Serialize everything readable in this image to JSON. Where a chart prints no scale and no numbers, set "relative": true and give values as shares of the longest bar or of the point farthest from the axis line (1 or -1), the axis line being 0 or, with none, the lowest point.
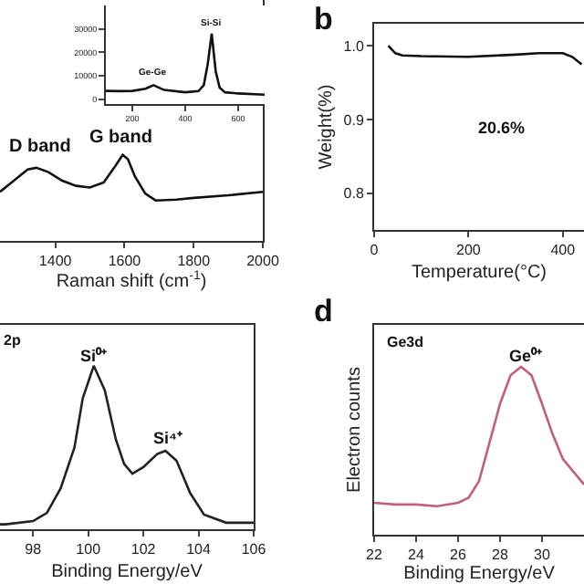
{
  "chart_data": [
    {
      "type": "line",
      "xlabel": "Raman shift (cm$^{-1}$)",
      "relative": true,
      "tick_labels": "x",
      "grid": false,
      "xlim": [
        1240,
        2000
      ],
      "xticks": [
        1400,
        1600,
        1800,
        2000
      ],
      "x": [
        1240,
        1280,
        1320,
        1345,
        1380,
        1420,
        1460,
        1500,
        1540,
        1570,
        1595,
        1610,
        1630,
        1660,
        1690,
        1750,
        1800,
        1900,
        2000
      ],
      "series": [
        {
          "color": "#111111",
          "values": [
            0.57,
            0.7,
            0.83,
            0.85,
            0.8,
            0.7,
            0.64,
            0.62,
            0.68,
            0.85,
            1.0,
            0.95,
            0.75,
            0.55,
            0.47,
            0.48,
            0.5,
            0.53,
            0.57
          ]
        }
      ],
      "annotations": [
        "D band",
        "G band"
      ]
    },
    {
      "type": "line",
      "grid": false,
      "xlim": [
        100,
        700
      ],
      "xticks": [
        200,
        400,
        600
      ],
      "ylim": [
        -2000,
        40000
      ],
      "yticks": [
        0,
        10000,
        20000,
        30000
      ],
      "x": [
        100,
        150,
        200,
        250,
        280,
        320,
        400,
        450,
        470,
        485,
        500,
        515,
        530,
        550,
        600,
        700
      ],
      "series": [
        {
          "color": "#111111",
          "values": [
            3600,
            3500,
            3600,
            4500,
            6000,
            4000,
            3000,
            3500,
            6000,
            15000,
            28000,
            12000,
            5000,
            3000,
            2500,
            2000
          ]
        }
      ],
      "annotations": [
        "Ge-Ge",
        "Si-Si"
      ]
    },
    {
      "type": "line",
      "title": "b",
      "xlabel": "Temperature(°C)",
      "ylabel": "Weight(%)",
      "grid": false,
      "xlim": [
        0,
        445
      ],
      "xticks": [
        0,
        200,
        400
      ],
      "ylim": [
        0.75,
        1.03
      ],
      "yticks": [
        {
          "value": 0.8,
          "label": "0.8"
        },
        {
          "value": 0.9,
          "label": "0.9"
        },
        {
          "value": 1.0,
          "label": "1.0"
        }
      ],
      "x": [
        30,
        45,
        60,
        100,
        200,
        300,
        350,
        400,
        420,
        440
      ],
      "series": [
        {
          "color": "#111111",
          "values": [
            1.0,
            0.99,
            0.987,
            0.986,
            0.985,
            0.988,
            0.99,
            0.99,
            0.985,
            0.975
          ]
        }
      ],
      "annotations": [
        "20.6%"
      ]
    },
    {
      "type": "line",
      "xlabel": "Binding Energy/eV",
      "relative": true,
      "tick_labels": "x",
      "grid": false,
      "xlim": [
        96.8,
        106
      ],
      "xticks": [
        98,
        100,
        102,
        104,
        106
      ],
      "x": [
        96.8,
        97,
        98,
        98.5,
        99,
        99.5,
        99.8,
        100.2,
        100.6,
        101,
        101.3,
        101.6,
        102,
        102.5,
        102.8,
        103.2,
        103.7,
        104.2,
        105,
        106
      ],
      "series": [
        {
          "color": "#222222",
          "values": [
            0.03,
            0.03,
            0.05,
            0.1,
            0.25,
            0.5,
            0.8,
            1.0,
            0.85,
            0.55,
            0.4,
            0.34,
            0.38,
            0.46,
            0.48,
            0.42,
            0.22,
            0.09,
            0.04,
            0.04
          ]
        }
      ],
      "annotations": [
        "2p",
        "Si⁰⁺",
        "Si⁴⁺"
      ]
    },
    {
      "type": "line",
      "title": "d",
      "xlabel": "Binding Energy/eV",
      "ylabel": "Electron counts",
      "relative": true,
      "tick_labels": "x",
      "grid": false,
      "xlim": [
        22,
        32
      ],
      "xticks": [
        22,
        24,
        26,
        28,
        30
      ],
      "x": [
        22,
        23,
        24,
        25,
        26,
        26.5,
        27,
        27.5,
        28,
        28.5,
        29,
        29.5,
        30,
        30.5,
        31,
        32
      ],
      "series": [
        {
          "color": "#c0607a",
          "values": [
            0.19,
            0.18,
            0.18,
            0.17,
            0.19,
            0.22,
            0.32,
            0.55,
            0.78,
            0.95,
            1.0,
            0.95,
            0.78,
            0.6,
            0.45,
            0.3
          ]
        }
      ],
      "annotations": [
        "Ge3d",
        "Ge⁰⁺"
      ]
    }
  ]
}
